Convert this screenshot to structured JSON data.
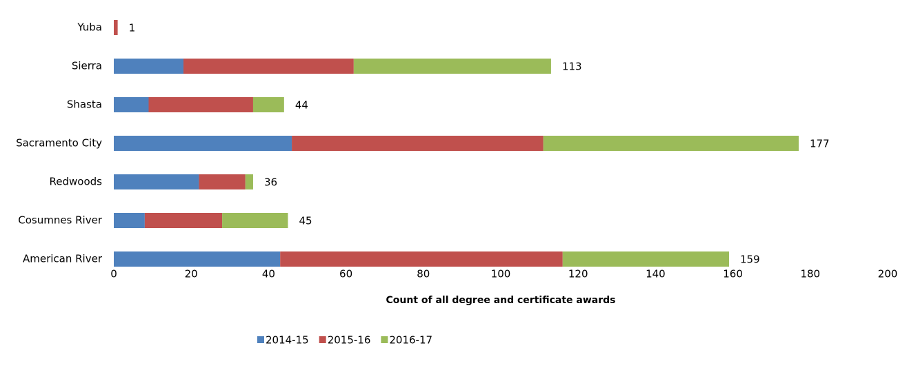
{
  "chart_data": {
    "type": "stacked-barh",
    "categories": [
      "Yuba",
      "Sierra",
      "Shasta",
      "Sacramento City",
      "Redwoods",
      "Cosumnes River",
      "American River"
    ],
    "series": [
      {
        "name": "2014-15",
        "color": "#4f81bd",
        "values": [
          0,
          18,
          9,
          46,
          22,
          8,
          43
        ]
      },
      {
        "name": "2015-16",
        "color": "#c0504d",
        "values": [
          1,
          44,
          27,
          65,
          12,
          20,
          73
        ]
      },
      {
        "name": "2016-17",
        "color": "#9bbb59",
        "values": [
          0,
          51,
          8,
          66,
          2,
          17,
          43
        ]
      }
    ],
    "totals": [
      1,
      113,
      44,
      177,
      36,
      45,
      159
    ],
    "xlabel": "Count of all degree and certificate awards",
    "xlim": [
      0,
      200
    ],
    "xticks": [
      0,
      20,
      40,
      60,
      80,
      100,
      120,
      140,
      160,
      180,
      200
    ],
    "legend": "bottom",
    "grid": false
  }
}
